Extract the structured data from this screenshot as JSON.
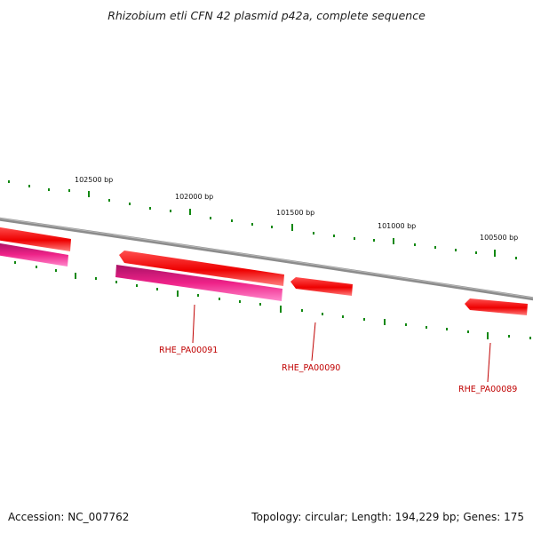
{
  "title": "Rhizobium etli CFN 42 plasmid p42a, complete sequence",
  "footer": {
    "accession": "Accession: NC_007762",
    "stats": "Topology: circular; Length: 194,229 bp; Genes: 175"
  },
  "scale_labels": {
    "bp_102500": "102500 bp",
    "bp_102000": "102000 bp",
    "bp_101500": "101500 bp",
    "bp_101000": "101000 bp",
    "bp_100500": "100500 bp"
  },
  "genes": {
    "rhe_pa00091": "RHE_PA00091",
    "rhe_pa00090": "RHE_PA00090",
    "rhe_pa00089": "RHE_PA00089"
  },
  "colors": {
    "backbone": "#808080",
    "cds": "#ff0000",
    "gene": "#ee1177",
    "tick": "#118811",
    "label": "#c00000"
  }
}
